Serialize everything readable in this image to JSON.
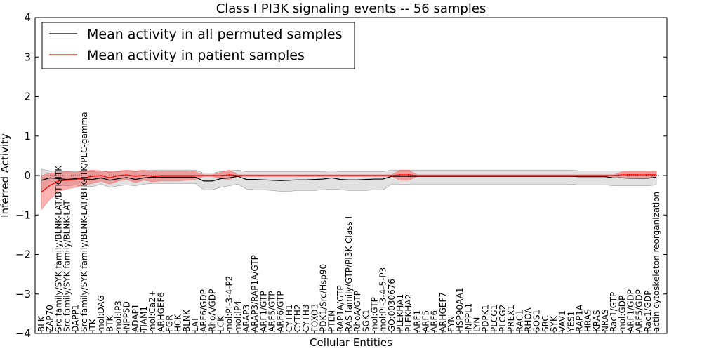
{
  "chart_data": {
    "type": "line",
    "title": "Class I PI3K signaling events -- 56 samples",
    "xlabel": "Cellular Entities",
    "ylabel": "Inferred Activity",
    "ylim": [
      -4,
      4
    ],
    "yticks": [
      "4",
      "3",
      "2",
      "1",
      "0",
      "−1",
      "−2",
      "−3",
      "−4"
    ],
    "ytick_values": [
      4,
      3,
      2,
      1,
      0,
      -1,
      -2,
      -3,
      -4
    ],
    "legend_position": "top-left",
    "categories": [
      "BLK",
      "ZAP70",
      "Src family/SYK family/BLNK-LAT/BTK-ITK",
      "Src family/SYK family/BLNK-LAT",
      "DAPP1",
      "Src family/SYK family/BLNK-LAT/BTK-ITK/PLC-gamma",
      "ITK",
      "mol:DAG",
      "BTK",
      "mol:IP3",
      "INPP5D",
      "ADAP1",
      "TIAM1",
      "mol:Ca2+",
      "ARHGEF6",
      "FGR",
      "HCK",
      "BLNK",
      "LAT",
      "ARF6/GDP",
      "RhoA/GDP",
      "LCK",
      "mol:PI-3-4-P2",
      "mol:IP4",
      "ARAP3",
      "ARAP3/RAP1A/GTP",
      "ARF1/GTP",
      "ARF5/GTP",
      "ARF6/GTP",
      "CYTH1",
      "CYTH2",
      "CYTH3",
      "FOXO3",
      "PDK1/Src/Hsp90",
      "PTEN",
      "RAP1A/GTP",
      "RAS family/GTP/PI3K Class I",
      "RhoA/GTP",
      "SGK1",
      "mol:GTP",
      "mol:PI-3-4-5-P3",
      "GO:0030676",
      "PLEKHA1",
      "PLEKHA2",
      "ARF1",
      "ARF5",
      "ARF6",
      "ARHGEF7",
      "FYN",
      "HSP90AA1",
      "INPPL1",
      "LYN",
      "PDPK1",
      "PLCG1",
      "PLCG2",
      "PREX1",
      "RAC1",
      "RHOA",
      "SOS1",
      "SRC",
      "SYK",
      "VAV1",
      "YES1",
      "RAP1A",
      "HRAS",
      "KRAS",
      "NRAS",
      "Rac1/GTP",
      "mol:GDP",
      "ARF1/GDP",
      "ARF5/GDP",
      "Rac1/GDP",
      "actin cytoskeleton reorganization"
    ],
    "series": [
      {
        "name": "Mean activity in all permuted samples",
        "color": "#000000",
        "values": [
          -0.12,
          -0.06,
          -0.08,
          -0.1,
          -0.08,
          -0.09,
          -0.1,
          -0.06,
          -0.12,
          -0.08,
          -0.05,
          -0.1,
          -0.06,
          -0.04,
          -0.04,
          -0.04,
          -0.04,
          -0.04,
          -0.04,
          -0.14,
          -0.14,
          -0.08,
          -0.06,
          -0.02,
          -0.1,
          -0.1,
          -0.11,
          -0.12,
          -0.13,
          -0.12,
          -0.11,
          -0.11,
          -0.1,
          -0.09,
          -0.06,
          -0.1,
          -0.11,
          -0.11,
          -0.1,
          -0.09,
          -0.09,
          -0.02,
          -0.02,
          -0.02,
          -0.02,
          -0.02,
          -0.02,
          -0.02,
          -0.02,
          -0.02,
          -0.02,
          -0.02,
          -0.02,
          -0.02,
          -0.02,
          -0.02,
          -0.02,
          -0.02,
          -0.02,
          -0.02,
          -0.02,
          -0.02,
          -0.02,
          -0.03,
          -0.03,
          -0.03,
          -0.03,
          -0.06,
          -0.06,
          -0.07,
          -0.07,
          -0.07,
          -0.04
        ],
        "lower": [
          -0.42,
          -0.24,
          -0.24,
          -0.26,
          -0.24,
          -0.28,
          -0.28,
          -0.22,
          -0.3,
          -0.26,
          -0.24,
          -0.26,
          -0.22,
          -0.2,
          -0.2,
          -0.2,
          -0.2,
          -0.2,
          -0.2,
          -0.36,
          -0.36,
          -0.3,
          -0.26,
          -0.22,
          -0.34,
          -0.36,
          -0.36,
          -0.38,
          -0.4,
          -0.4,
          -0.38,
          -0.38,
          -0.38,
          -0.36,
          -0.34,
          -0.36,
          -0.38,
          -0.38,
          -0.38,
          -0.36,
          -0.36,
          -0.22,
          -0.22,
          -0.22,
          -0.22,
          -0.22,
          -0.22,
          -0.22,
          -0.22,
          -0.22,
          -0.22,
          -0.22,
          -0.22,
          -0.22,
          -0.22,
          -0.22,
          -0.22,
          -0.22,
          -0.22,
          -0.22,
          -0.22,
          -0.22,
          -0.22,
          -0.24,
          -0.24,
          -0.24,
          -0.24,
          -0.26,
          -0.26,
          -0.26,
          -0.26,
          -0.26,
          -0.24
        ],
        "upper": [
          0.16,
          0.12,
          0.1,
          0.1,
          0.1,
          0.1,
          0.1,
          0.12,
          0.08,
          0.1,
          0.12,
          0.1,
          0.12,
          0.14,
          0.14,
          0.14,
          0.14,
          0.14,
          0.14,
          0.06,
          0.06,
          0.1,
          0.12,
          0.14,
          0.1,
          0.1,
          0.1,
          0.1,
          0.1,
          0.1,
          0.1,
          0.1,
          0.1,
          0.1,
          0.12,
          0.1,
          0.1,
          0.1,
          0.1,
          0.1,
          0.1,
          0.14,
          0.14,
          0.14,
          0.14,
          0.14,
          0.14,
          0.14,
          0.14,
          0.14,
          0.14,
          0.14,
          0.14,
          0.14,
          0.14,
          0.14,
          0.14,
          0.14,
          0.14,
          0.14,
          0.14,
          0.14,
          0.14,
          0.12,
          0.12,
          0.12,
          0.12,
          0.12,
          0.12,
          0.12,
          0.12,
          0.12,
          0.12
        ]
      },
      {
        "name": "Mean activity in patient samples",
        "color": "#ff0000",
        "values": [
          -0.42,
          -0.25,
          -0.14,
          -0.12,
          -0.1,
          -0.06,
          -0.02,
          0.0,
          -0.06,
          0.0,
          0.02,
          -0.02,
          0.01,
          -0.02,
          0.0,
          0.0,
          0.0,
          0.0,
          0.0,
          0.0,
          0.0,
          0.0,
          0.02,
          0.0,
          0.0,
          0.0,
          0.0,
          0.0,
          0.0,
          0.0,
          0.0,
          0.0,
          0.0,
          0.0,
          0.0,
          0.0,
          0.0,
          0.0,
          0.0,
          0.0,
          0.0,
          0.0,
          0.02,
          0.02,
          0.0,
          0.0,
          0.0,
          0.0,
          0.0,
          0.0,
          0.0,
          0.0,
          0.0,
          0.0,
          0.0,
          0.0,
          0.0,
          0.0,
          0.0,
          0.0,
          0.0,
          0.0,
          0.0,
          0.0,
          0.0,
          0.0,
          0.0,
          0.0,
          0.02,
          0.02,
          0.02,
          0.02,
          0.02
        ],
        "lower": [
          -0.86,
          -0.6,
          -0.4,
          -0.34,
          -0.3,
          -0.24,
          -0.2,
          -0.14,
          -0.22,
          -0.14,
          -0.1,
          -0.18,
          -0.12,
          -0.16,
          -0.14,
          -0.14,
          -0.14,
          -0.12,
          -0.1,
          -0.02,
          -0.02,
          -0.08,
          -0.1,
          -0.02,
          -0.02,
          -0.02,
          -0.02,
          -0.02,
          -0.02,
          -0.02,
          -0.02,
          -0.02,
          -0.02,
          -0.02,
          -0.02,
          -0.02,
          -0.02,
          -0.02,
          -0.02,
          -0.02,
          -0.02,
          -0.02,
          -0.12,
          -0.12,
          -0.02,
          -0.02,
          -0.02,
          -0.02,
          -0.02,
          -0.02,
          -0.02,
          -0.02,
          -0.02,
          -0.02,
          -0.02,
          -0.02,
          -0.02,
          -0.02,
          -0.02,
          -0.02,
          -0.02,
          -0.02,
          -0.02,
          -0.02,
          -0.02,
          -0.02,
          -0.02,
          -0.02,
          -0.06,
          -0.06,
          -0.06,
          -0.06,
          -0.06
        ],
        "upper": [
          0.0,
          0.06,
          0.08,
          0.1,
          0.08,
          0.12,
          0.14,
          0.12,
          0.1,
          0.12,
          0.14,
          0.12,
          0.14,
          0.1,
          0.12,
          0.12,
          0.12,
          0.12,
          0.1,
          0.02,
          0.02,
          0.08,
          0.14,
          0.02,
          0.02,
          0.02,
          0.02,
          0.02,
          0.02,
          0.02,
          0.02,
          0.02,
          0.02,
          0.02,
          0.02,
          0.02,
          0.02,
          0.02,
          0.02,
          0.02,
          0.02,
          0.02,
          0.14,
          0.14,
          0.02,
          0.02,
          0.02,
          0.02,
          0.02,
          0.02,
          0.02,
          0.02,
          0.02,
          0.02,
          0.02,
          0.02,
          0.02,
          0.02,
          0.02,
          0.02,
          0.02,
          0.02,
          0.02,
          0.02,
          0.02,
          0.02,
          0.02,
          0.02,
          0.1,
          0.1,
          0.1,
          0.1,
          0.1
        ]
      }
    ]
  }
}
